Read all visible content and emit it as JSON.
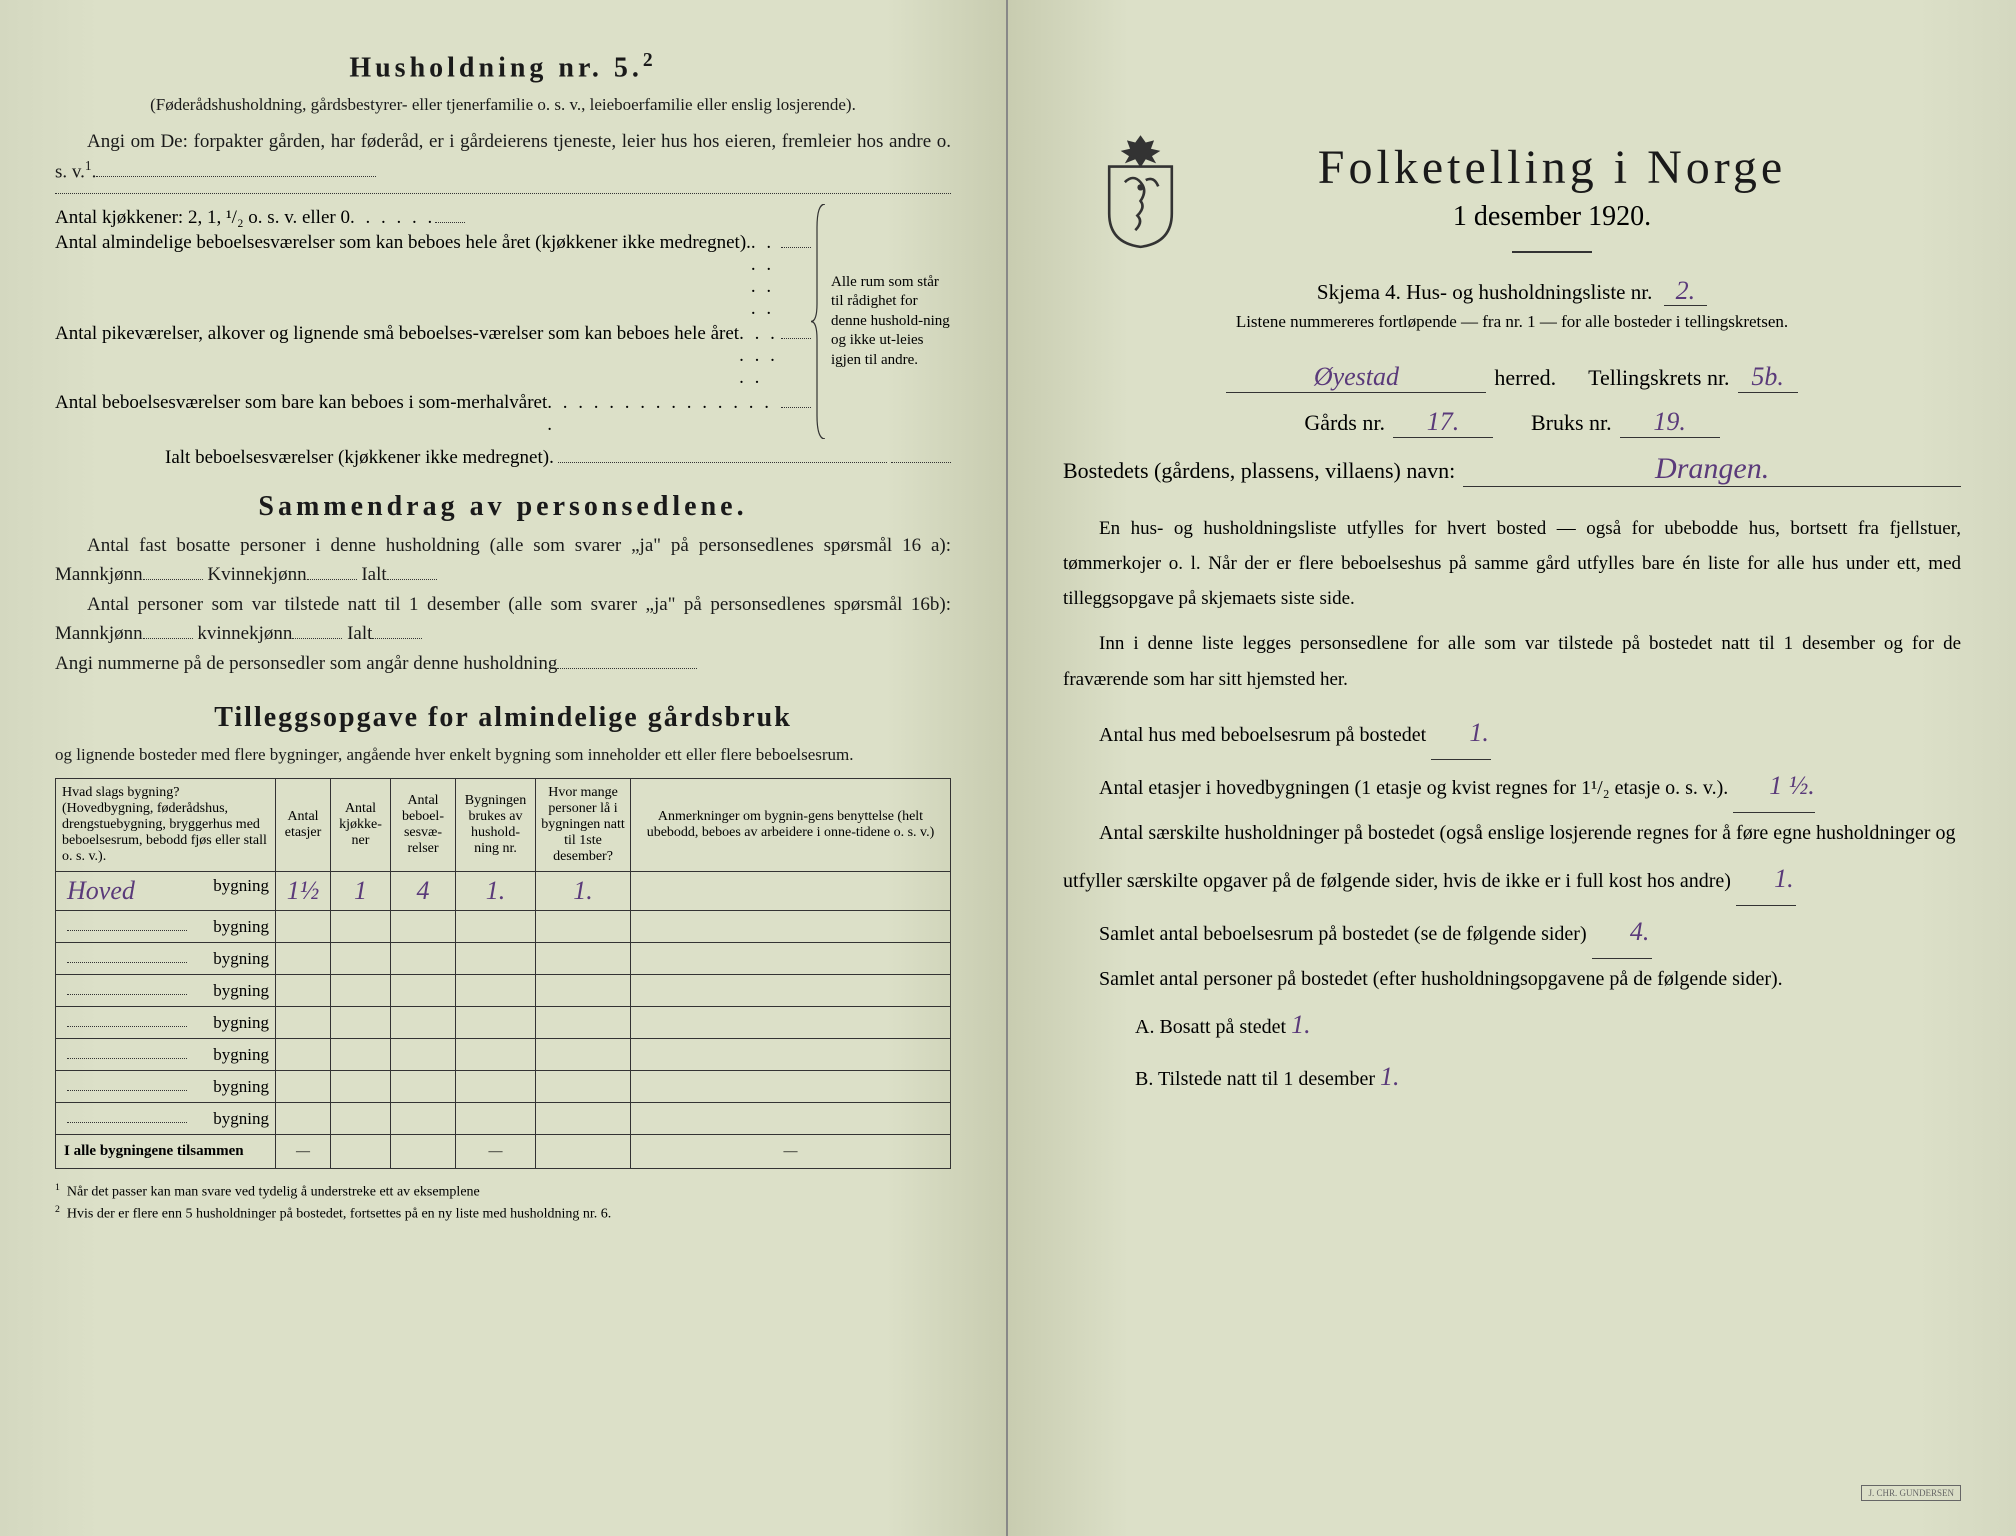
{
  "left": {
    "h5_title": "Husholdning nr. 5.",
    "h5_sup": "2",
    "h5_sub": "(Føderådshusholdning, gårdsbestyrer- eller tjenerfamilie o. s. v., leieboerfamilie eller enslig losjerende).",
    "h5_q": "Angi om De: forpakter gården, har føderåd, er i gårdeierens tjeneste, leier hus hos eieren, fremleier hos andre o. s. v.",
    "h5_q_sup": "1",
    "kitchen_line": "Antal kjøkkener: 2, 1, ¹/₂ o. s. v. eller 0",
    "rooms1": "Antal almindelige beboelsesværelser som kan beboes hele året (kjøkkener ikke medregnet).",
    "rooms2": "Antal pikeværelser, alkover og lignende små beboelses-værelser som kan beboes hele året",
    "rooms3": "Antal beboelsesværelser som bare kan beboes i som-merhalvåret",
    "brace_text": "Alle rum som står til rådighet for denne hushold-ning og ikke ut-leies igjen til andre.",
    "ialt_line": "Ialt beboelsesværelser (kjøkkener ikke medregnet).",
    "summary_title": "Sammendrag av personsedlene.",
    "sum1": "Antal fast bosatte personer i denne husholdning (alle som svarer „ja\" på personsedlenes spørsmål 16 a): Mannkjønn",
    "sum_kvinne": "Kvinnekjønn",
    "sum_ialt": "Ialt",
    "sum2": "Antal personer som var tilstede natt til 1 desember (alle som svarer „ja\" på personsedlenes spørsmål 16b): Mannkjønn",
    "sum_kvinne2": "kvinnekjønn",
    "sum3": "Angi nummerne på de personsedler som angår denne husholdning",
    "tillegg_title": "Tilleggsopgave for almindelige gårdsbruk",
    "tillegg_sub": "og lignende bosteder med flere bygninger, angående hver enkelt bygning som inneholder ett eller flere beboelsesrum.",
    "table": {
      "columns": [
        "Hvad slags bygning?\n(Hovedbygning, føderådshus, drengstuebygning, bryggerhus med beboelsesrum, bebodd fjøs eller stall o. s. v.).",
        "Antal etasjer",
        "Antal kjøkke-ner",
        "Antal beboel-sesvæ-relser",
        "Bygningen brukes av hushold-ning nr.",
        "Hvor mange personer lå i bygningen natt til 1ste desember?",
        "Anmerkninger om bygnin-gens benyttelse (helt ubebodd, beboes av arbeidere i onne-tidene o. s. v.)"
      ],
      "suffix": "bygning",
      "rows": [
        {
          "name": "Hoved",
          "vals": [
            "1½",
            "1",
            "4",
            "1.",
            "1.",
            ""
          ]
        },
        {
          "name": "",
          "vals": [
            "",
            "",
            "",
            "",
            "",
            ""
          ]
        },
        {
          "name": "",
          "vals": [
            "",
            "",
            "",
            "",
            "",
            ""
          ]
        },
        {
          "name": "",
          "vals": [
            "",
            "",
            "",
            "",
            "",
            ""
          ]
        },
        {
          "name": "",
          "vals": [
            "",
            "",
            "",
            "",
            "",
            ""
          ]
        },
        {
          "name": "",
          "vals": [
            "",
            "",
            "",
            "",
            "",
            ""
          ]
        },
        {
          "name": "",
          "vals": [
            "",
            "",
            "",
            "",
            "",
            ""
          ]
        },
        {
          "name": "",
          "vals": [
            "",
            "",
            "",
            "",
            "",
            ""
          ]
        }
      ],
      "total_label": "I alle bygningene tilsammen"
    },
    "footnote1": "Når det passer kan man svare ved tydelig å understreke ett av eksemplene",
    "footnote2": "Hvis der er flere enn 5 husholdninger på bostedet, fortsettes på en ny liste med husholdning nr. 6."
  },
  "right": {
    "main_title": "Folketelling i Norge",
    "sub_title": "1 desember 1920.",
    "form_label": "Skjema 4.  Hus- og husholdningsliste nr.",
    "form_nr": "2.",
    "note": "Listene nummereres fortløpende — fra nr. 1 — for alle bosteder i tellingskretsen.",
    "herred_val": "Øyestad",
    "herred_label": "herred.",
    "krets_label": "Tellingskrets nr.",
    "krets_val": "5b.",
    "gards_label": "Gårds nr.",
    "gards_val": "17.",
    "bruks_label": "Bruks nr.",
    "bruks_val": "19.",
    "bosted_label": "Bostedets (gårdens, plassens, villaens) navn:",
    "bosted_val": "Drangen.",
    "para1": "En hus- og husholdningsliste utfylles for hvert bosted — også for ubebodde hus, bortsett fra fjellstuer, tømmerkojer o. l. Når der er flere beboelseshus på samme gård utfylles bare én liste for alle hus under ett, med tilleggsopgave på skjemaets siste side.",
    "para2": "Inn i denne liste legges personsedlene for alle som var tilstede på bostedet natt til 1 desember og for de fraværende som har sitt hjemsted her.",
    "stat1": "Antal hus med beboelsesrum på bostedet",
    "stat1_val": "1.",
    "stat2a": "Antal etasjer i hovedbygningen (1 etasje og kvist regnes for 1¹/₂ etasje o. s. v.).",
    "stat2_val": "1 ½.",
    "stat3": "Antal særskilte husholdninger på bostedet (også enslige losjerende regnes for å føre egne husholdninger og utfyller særskilte opgaver på de følgende sider, hvis de ikke er i full kost hos andre)",
    "stat3_val": "1.",
    "stat4": "Samlet antal beboelsesrum på bostedet (se de følgende sider)",
    "stat4_val": "4.",
    "stat5": "Samlet antal personer på bostedet (efter husholdningsopgavene på de følgende sider).",
    "statA": "A.  Bosatt på stedet",
    "statA_val": "1.",
    "statB": "B.  Tilstede natt til 1 desember",
    "statB_val": "1.",
    "stamp": "J. CHR. GUNDERSEN"
  },
  "colors": {
    "paper": "#dce0c8",
    "ink": "#1a1a1a",
    "handwriting": "#5a3a7a"
  }
}
